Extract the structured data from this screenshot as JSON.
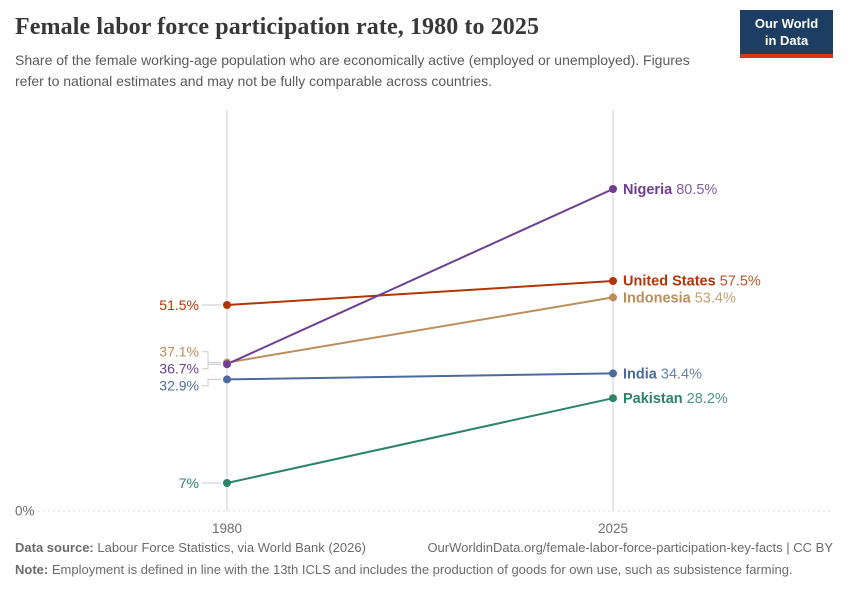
{
  "header": {
    "title": "Female labor force participation rate, 1980 to 2025",
    "subtitle": "Share of the female working-age population who are economically active (employed or unemployed). Figures refer to national estimates and may not be fully comparable across countries.",
    "logo": {
      "line1": "Our World",
      "line2": "in Data",
      "bg_color": "#1d3d63",
      "accent_color": "#d3352b"
    }
  },
  "chart_data": {
    "type": "line",
    "title": "Female labor force participation rate, 1980 to 2025",
    "x": [
      1980,
      2025
    ],
    "x_tick_labels": [
      "1980",
      "2025"
    ],
    "ylim": [
      0,
      100
    ],
    "y_baseline_label": "0%",
    "grid": "baseline dotted only",
    "legend_position": "end-of-line labels",
    "series": [
      {
        "name": "Nigeria",
        "color": "#6d3e91",
        "values": [
          36.7,
          80.5
        ],
        "start_label": "36.7%",
        "end_label": "80.5%"
      },
      {
        "name": "United States",
        "color": "#b13507",
        "values": [
          51.5,
          57.5
        ],
        "start_label": "51.5%",
        "end_label": "57.5%"
      },
      {
        "name": "Indonesia",
        "color": "#bc8e5a",
        "values": [
          37.1,
          53.4
        ],
        "start_label": "37.1%",
        "end_label": "53.4%"
      },
      {
        "name": "India",
        "color": "#4c6a9c",
        "values": [
          32.9,
          34.4
        ],
        "start_label": "32.9%",
        "end_label": "34.4%"
      },
      {
        "name": "Pakistan",
        "color": "#2c8465",
        "values": [
          7,
          28.2
        ],
        "start_label": "7%",
        "end_label": "28.2%"
      }
    ]
  },
  "footer": {
    "source_label": "Data source:",
    "source_text": "Labour Force Statistics, via World Bank (2026)",
    "link": "OurWorldinData.org/female-labor-force-participation-key-facts | CC BY",
    "note_label": "Note:",
    "note_text": "Employment is defined in line with the 13th ICLS and includes the production of goods for own use, such as subsistence farming."
  }
}
